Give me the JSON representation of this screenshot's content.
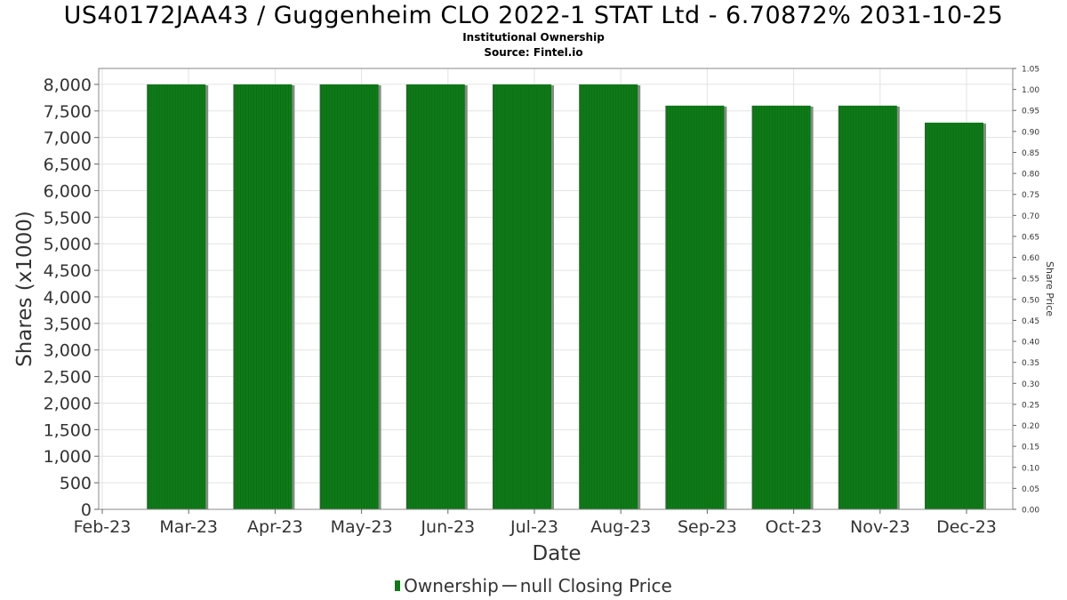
{
  "title": "US40172JAA43 / Guggenheim CLO 2022-1 STAT Ltd - 6.70872% 2031-10-25",
  "subtitle_1": "Institutional Ownership",
  "subtitle_2": "Source: Fintel.io",
  "legend": {
    "ownership_label": "Ownership",
    "price_label": "null Closing Price"
  },
  "colors": {
    "bar": "#0f7a18",
    "bar_shadow": "#888888",
    "grid": "#e3e3e3"
  },
  "chart_data": {
    "type": "bar",
    "xlabel": "Date",
    "ylabel": "Shares (x1000)",
    "y2label": "Share Price",
    "x_ticks": [
      "Feb-23",
      "Mar-23",
      "Apr-23",
      "May-23",
      "Jun-23",
      "Jul-23",
      "Aug-23",
      "Sep-23",
      "Oct-23",
      "Nov-23",
      "Dec-23"
    ],
    "categories": [
      "Mar-23",
      "Apr-23",
      "May-23",
      "Jun-23",
      "Jul-23",
      "Aug-23",
      "Sep-23",
      "Oct-23",
      "Nov-23",
      "Dec-23"
    ],
    "series": [
      {
        "name": "Ownership",
        "values": [
          8000,
          8000,
          8000,
          8000,
          8000,
          8000,
          7600,
          7600,
          7600,
          7280
        ]
      }
    ],
    "ylim": [
      0,
      8300
    ],
    "y_ticks": [
      "0",
      "500",
      "1,000",
      "1,500",
      "2,000",
      "2,500",
      "3,000",
      "3,500",
      "4,000",
      "4,500",
      "5,000",
      "5,500",
      "6,000",
      "6,500",
      "7,000",
      "7,500",
      "8,000"
    ],
    "y2lim": [
      0,
      1.05
    ],
    "y2_ticks": [
      "0.00",
      "0.05",
      "0.10",
      "0.15",
      "0.20",
      "0.25",
      "0.30",
      "0.35",
      "0.40",
      "0.45",
      "0.50",
      "0.55",
      "0.60",
      "0.65",
      "0.70",
      "0.75",
      "0.80",
      "0.85",
      "0.90",
      "0.95",
      "1.00",
      "1.05"
    ],
    "grid": true,
    "legend_position": "bottom"
  }
}
